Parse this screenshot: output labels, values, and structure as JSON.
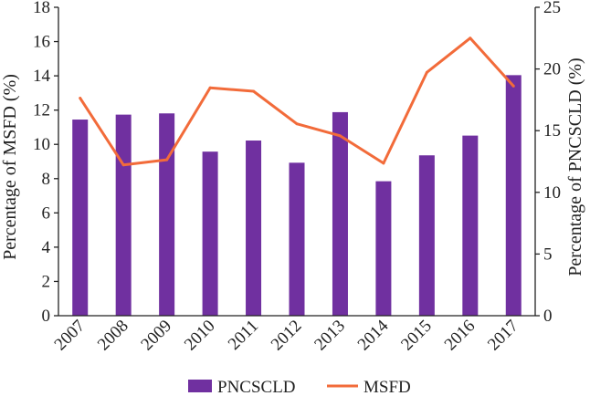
{
  "chart_data": {
    "type": "bar+line",
    "title": "",
    "categories": [
      "2007",
      "2008",
      "2009",
      "2010",
      "2011",
      "2012",
      "2013",
      "2014",
      "2015",
      "2016",
      "2017"
    ],
    "series": [
      {
        "name": "PNCSCLD",
        "type": "bar",
        "axis": "right",
        "color": "#7030a0",
        "values": [
          15.9,
          16.3,
          16.4,
          13.3,
          14.2,
          12.4,
          16.5,
          10.9,
          13.0,
          14.6,
          19.5
        ]
      },
      {
        "name": "MSFD",
        "type": "line",
        "axis": "left",
        "color": "#f26b3a",
        "values": [
          12.7,
          8.8,
          9.1,
          13.3,
          13.1,
          11.2,
          10.5,
          8.9,
          14.2,
          16.2,
          13.4
        ]
      }
    ],
    "y_left": {
      "label": "Percentage of MSFD (%)",
      "ylim": [
        0,
        18
      ],
      "ticks": [
        "0",
        "2",
        "4",
        "6",
        "8",
        "10",
        "12",
        "14",
        "16",
        "18"
      ]
    },
    "y_right": {
      "label": "Percentage of PNCSCLD (%)",
      "ylim": [
        0,
        25
      ],
      "ticks": [
        "0",
        "5",
        "10",
        "15",
        "20",
        "25"
      ]
    },
    "xlabel": "",
    "grid": false,
    "legend": {
      "placement": "bottom-center",
      "entries": [
        "PNCSCLD",
        "MSFD"
      ]
    }
  }
}
